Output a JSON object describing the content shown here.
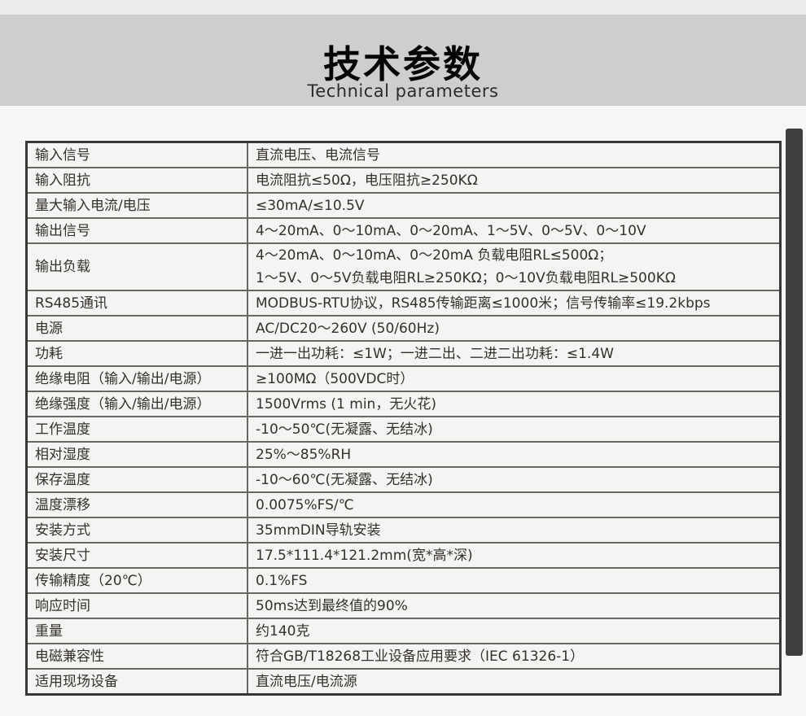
{
  "page": {
    "background_color": "#f5f6f5",
    "top_strip_color": "#ebebeb",
    "banner_color": "#cecece",
    "table_border_color": "#3a3836",
    "scrollbar_thumb_color": "#3e3e3e"
  },
  "header": {
    "title": "技术参数",
    "subtitle": "Technical parameters"
  },
  "table": {
    "rows": [
      {
        "name": "输入信号",
        "value": "直流电压、电流信号"
      },
      {
        "name": "输入阻抗",
        "value": "电流阻抗≤50Ω，电压阻抗≥250KΩ"
      },
      {
        "name": "量大输入电流/电压",
        "value": "≤30mA/≤10.5V"
      },
      {
        "name": "输出信号",
        "value": "4～20mA、0～10mA、0～20mA、1～5V、0～5V、0～10V"
      },
      {
        "name": "输出负载",
        "value": "4～20mA、0～10mA、0～20mA 负载电阻RL≤500Ω；\n1～5V、0～5V负载电阻RL≥250KΩ；0～10V负载电阻RL≥500KΩ"
      },
      {
        "name": "RS485通讯",
        "value": "MODBUS-RTU协议，RS485传输距离≤1000米；信号传输率≤19.2kbps"
      },
      {
        "name": "电源",
        "value": "AC/DC20～260V (50/60Hz)"
      },
      {
        "name": "功耗",
        "value": "一进一出功耗：≤1W；一进二出、二进二出功耗：≤1.4W"
      },
      {
        "name": "绝缘电阻（输入/输出/电源）",
        "value": "≥100MΩ（500VDC时）"
      },
      {
        "name": "绝缘强度（输入/输出/电源）",
        "value": "1500Vrms (1 min，无火花)"
      },
      {
        "name": "工作温度",
        "value": "-10～50℃(无凝露、无结冰)"
      },
      {
        "name": "相对湿度",
        "value": "25%～85%RH"
      },
      {
        "name": "保存温度",
        "value": "-10～60℃(无凝露、无结冰)"
      },
      {
        "name": "温度漂移",
        "value": "0.0075%FS/℃"
      },
      {
        "name": "安装方式",
        "value": "35mmDIN导轨安装"
      },
      {
        "name": "安装尺寸",
        "value": "17.5*111.4*121.2mm(宽*高*深)"
      },
      {
        "name": "传输精度（20℃）",
        "value": "0.1%FS"
      },
      {
        "name": "响应时间",
        "value": "50ms达到最终值的90%"
      },
      {
        "name": "重量",
        "value": "约140克"
      },
      {
        "name": "电磁兼容性",
        "value": "符合GB/T18268工业设备应用要求（IEC 61326-1）"
      },
      {
        "name": "适用现场设备",
        "value": "直流电压/电流源"
      }
    ]
  }
}
